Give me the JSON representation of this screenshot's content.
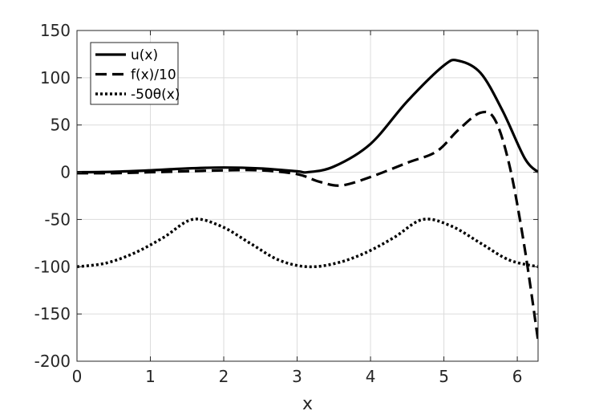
{
  "chart_data": {
    "type": "line",
    "xlabel": "x",
    "ylabel": "",
    "xlim": [
      0,
      6.2832
    ],
    "ylim": [
      -200,
      150
    ],
    "x_ticks": [
      0,
      1,
      2,
      3,
      4,
      5,
      6
    ],
    "y_ticks": [
      -200,
      -150,
      -100,
      -50,
      0,
      50,
      100,
      150
    ],
    "grid": true,
    "legend_position": "top-left",
    "series": [
      {
        "name": "u(x)",
        "style": "solid",
        "color": "#000000",
        "x": [
          0,
          0.5,
          1,
          1.5,
          2,
          2.5,
          3,
          3.14,
          3.5,
          4,
          4.5,
          5,
          5.2,
          5.5,
          5.8,
          6.1,
          6.2832
        ],
        "y": [
          0,
          0.5,
          2,
          4,
          5,
          4,
          1,
          0,
          6,
          30,
          75,
          113,
          118,
          105,
          65,
          15,
          0
        ]
      },
      {
        "name": "f(x)/10",
        "style": "dashed",
        "color": "#000000",
        "x": [
          0,
          0.5,
          1,
          1.5,
          2,
          2.5,
          3,
          3.3,
          3.6,
          4,
          4.5,
          4.9,
          5.2,
          5.5,
          5.7,
          5.9,
          6.1,
          6.2832
        ],
        "y": [
          -1,
          -1,
          0,
          1,
          2,
          2,
          -2,
          -10,
          -14,
          -5,
          10,
          22,
          45,
          63,
          55,
          5,
          -80,
          -178
        ]
      },
      {
        "name": "-50θ(x)",
        "style": "dotted",
        "color": "#000000",
        "x": [
          0,
          0.3927,
          0.7854,
          1.1781,
          1.5708,
          1.9635,
          2.3562,
          2.7489,
          3.1416,
          3.5343,
          3.927,
          4.3197,
          4.7124,
          5.1051,
          5.4978,
          5.8905,
          6.2832
        ],
        "y": [
          -100,
          -96.2,
          -85.4,
          -69.1,
          -50,
          -57.1,
          -75,
          -92.9,
          -100,
          -96.2,
          -85.4,
          -69.1,
          -50,
          -57.1,
          -75,
          -92.9,
          -100
        ]
      }
    ]
  }
}
